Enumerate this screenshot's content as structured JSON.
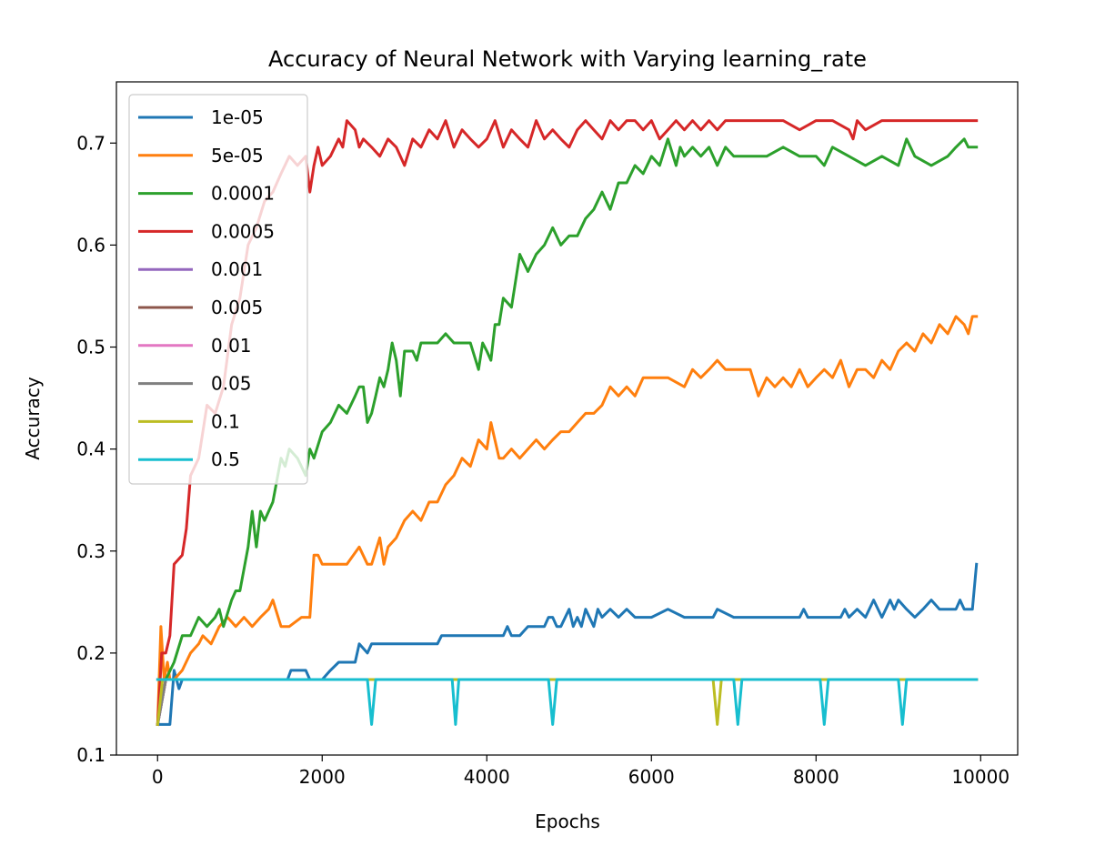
{
  "chart_data": {
    "type": "line",
    "title": "Accuracy of Neural Network with Varying learning_rate",
    "xlabel": "Epochs",
    "ylabel": "Accuracy",
    "xlim": [
      -500,
      10450
    ],
    "ylim": [
      0.1,
      0.76
    ],
    "xticks": [
      0,
      2000,
      4000,
      6000,
      8000,
      10000
    ],
    "yticks": [
      0.1,
      0.2,
      0.3,
      0.4,
      0.5,
      0.6,
      0.7
    ],
    "ytick_labels": [
      "0.1",
      "0.2",
      "0.3",
      "0.4",
      "0.5",
      "0.6",
      "0.7"
    ],
    "grid": false,
    "legend_position": "upper-left",
    "series": [
      {
        "name": "1e-05",
        "color": "#1f77b4",
        "x": [
          0,
          40,
          100,
          150,
          200,
          260,
          300,
          400,
          500,
          600,
          800,
          1000,
          1200,
          1400,
          1500,
          1580,
          1620,
          1800,
          1850,
          2000,
          2100,
          2200,
          2400,
          2450,
          2550,
          2600,
          3000,
          3400,
          3450,
          3800,
          4200,
          4250,
          4300,
          4400,
          4500,
          4600,
          4700,
          4750,
          4800,
          4850,
          4900,
          5000,
          5050,
          5100,
          5150,
          5200,
          5300,
          5350,
          5400,
          5500,
          5600,
          5700,
          5800,
          6000,
          6200,
          6400,
          6600,
          6750,
          6800,
          7000,
          7800,
          7850,
          7900,
          8300,
          8350,
          8400,
          8500,
          8600,
          8700,
          8800,
          8900,
          8950,
          9000,
          9100,
          9200,
          9300,
          9400,
          9500,
          9600,
          9700,
          9750,
          9800,
          9850,
          9900,
          9950
        ],
        "y": [
          0.13,
          0.13,
          0.13,
          0.13,
          0.183,
          0.165,
          0.174,
          0.174,
          0.174,
          0.174,
          0.174,
          0.174,
          0.174,
          0.174,
          0.174,
          0.174,
          0.183,
          0.183,
          0.174,
          0.174,
          0.183,
          0.191,
          0.191,
          0.209,
          0.2,
          0.209,
          0.209,
          0.209,
          0.217,
          0.217,
          0.217,
          0.226,
          0.217,
          0.217,
          0.226,
          0.226,
          0.226,
          0.235,
          0.235,
          0.226,
          0.226,
          0.243,
          0.226,
          0.235,
          0.226,
          0.243,
          0.226,
          0.243,
          0.235,
          0.243,
          0.235,
          0.243,
          0.235,
          0.235,
          0.243,
          0.235,
          0.235,
          0.235,
          0.243,
          0.235,
          0.235,
          0.243,
          0.235,
          0.235,
          0.243,
          0.235,
          0.243,
          0.235,
          0.252,
          0.235,
          0.252,
          0.243,
          0.252,
          0.243,
          0.235,
          0.243,
          0.252,
          0.243,
          0.243,
          0.243,
          0.252,
          0.243,
          0.243,
          0.243,
          0.287
        ]
      },
      {
        "name": "5e-05",
        "color": "#ff7f0e",
        "x": [
          0,
          40,
          80,
          120,
          150,
          200,
          300,
          400,
          500,
          550,
          650,
          750,
          850,
          950,
          1050,
          1150,
          1250,
          1350,
          1400,
          1500,
          1600,
          1750,
          1850,
          1900,
          1950,
          2000,
          2100,
          2300,
          2450,
          2550,
          2600,
          2700,
          2750,
          2800,
          2900,
          3000,
          3100,
          3200,
          3300,
          3400,
          3500,
          3600,
          3700,
          3800,
          3900,
          4000,
          4050,
          4150,
          4200,
          4300,
          4400,
          4500,
          4600,
          4700,
          4800,
          4900,
          5000,
          5100,
          5200,
          5300,
          5400,
          5500,
          5600,
          5700,
          5800,
          5900,
          6000,
          6200,
          6400,
          6500,
          6600,
          6700,
          6800,
          6900,
          7000,
          7100,
          7200,
          7300,
          7400,
          7500,
          7600,
          7700,
          7800,
          7900,
          8000,
          8100,
          8200,
          8300,
          8400,
          8500,
          8600,
          8700,
          8800,
          8900,
          9000,
          9100,
          9200,
          9300,
          9400,
          9500,
          9600,
          9700,
          9800,
          9850,
          9900,
          9950
        ],
        "y": [
          0.13,
          0.226,
          0.174,
          0.191,
          0.174,
          0.174,
          0.183,
          0.2,
          0.209,
          0.217,
          0.209,
          0.226,
          0.235,
          0.226,
          0.235,
          0.226,
          0.235,
          0.243,
          0.252,
          0.226,
          0.226,
          0.235,
          0.235,
          0.296,
          0.296,
          0.287,
          0.287,
          0.287,
          0.304,
          0.287,
          0.287,
          0.313,
          0.287,
          0.304,
          0.313,
          0.33,
          0.339,
          0.33,
          0.348,
          0.348,
          0.365,
          0.374,
          0.391,
          0.383,
          0.409,
          0.4,
          0.426,
          0.391,
          0.391,
          0.4,
          0.391,
          0.4,
          0.409,
          0.4,
          0.409,
          0.417,
          0.417,
          0.426,
          0.435,
          0.435,
          0.443,
          0.461,
          0.452,
          0.461,
          0.452,
          0.47,
          0.47,
          0.47,
          0.461,
          0.478,
          0.47,
          0.478,
          0.487,
          0.478,
          0.478,
          0.478,
          0.478,
          0.452,
          0.47,
          0.461,
          0.47,
          0.461,
          0.478,
          0.461,
          0.47,
          0.478,
          0.47,
          0.487,
          0.461,
          0.478,
          0.478,
          0.47,
          0.487,
          0.478,
          0.496,
          0.504,
          0.496,
          0.513,
          0.504,
          0.522,
          0.513,
          0.53,
          0.522,
          0.513,
          0.53,
          0.53
        ]
      },
      {
        "name": "0.0001",
        "color": "#2ca02c",
        "x": [
          0,
          100,
          200,
          300,
          400,
          450,
          500,
          600,
          700,
          750,
          800,
          900,
          950,
          1000,
          1100,
          1150,
          1200,
          1250,
          1300,
          1400,
          1500,
          1550,
          1600,
          1700,
          1800,
          1850,
          1900,
          2000,
          2100,
          2200,
          2300,
          2400,
          2450,
          2500,
          2550,
          2600,
          2650,
          2700,
          2750,
          2800,
          2850,
          2900,
          2950,
          3000,
          3100,
          3150,
          3200,
          3300,
          3400,
          3500,
          3600,
          3700,
          3800,
          3900,
          3950,
          4000,
          4050,
          4100,
          4150,
          4200,
          4300,
          4400,
          4500,
          4600,
          4700,
          4800,
          4900,
          5000,
          5100,
          5200,
          5300,
          5400,
          5500,
          5600,
          5700,
          5800,
          5900,
          6000,
          6100,
          6200,
          6300,
          6350,
          6400,
          6500,
          6600,
          6700,
          6800,
          6900,
          7000,
          7200,
          7400,
          7600,
          7800,
          8000,
          8100,
          8200,
          8400,
          8600,
          8800,
          9000,
          9100,
          9200,
          9400,
          9600,
          9700,
          9800,
          9850,
          9900,
          9950
        ],
        "y": [
          0.13,
          0.174,
          0.191,
          0.217,
          0.217,
          0.226,
          0.235,
          0.226,
          0.235,
          0.243,
          0.226,
          0.252,
          0.261,
          0.261,
          0.304,
          0.339,
          0.304,
          0.339,
          0.33,
          0.348,
          0.391,
          0.383,
          0.4,
          0.391,
          0.374,
          0.4,
          0.391,
          0.417,
          0.426,
          0.443,
          0.435,
          0.452,
          0.461,
          0.461,
          0.426,
          0.435,
          0.452,
          0.47,
          0.461,
          0.478,
          0.504,
          0.487,
          0.452,
          0.496,
          0.496,
          0.487,
          0.504,
          0.504,
          0.504,
          0.513,
          0.504,
          0.504,
          0.504,
          0.478,
          0.504,
          0.496,
          0.487,
          0.522,
          0.522,
          0.548,
          0.539,
          0.591,
          0.574,
          0.591,
          0.6,
          0.617,
          0.6,
          0.609,
          0.609,
          0.626,
          0.635,
          0.652,
          0.635,
          0.661,
          0.661,
          0.678,
          0.67,
          0.687,
          0.678,
          0.704,
          0.678,
          0.696,
          0.687,
          0.696,
          0.687,
          0.696,
          0.678,
          0.696,
          0.687,
          0.687,
          0.687,
          0.696,
          0.687,
          0.687,
          0.678,
          0.696,
          0.687,
          0.678,
          0.687,
          0.678,
          0.704,
          0.687,
          0.678,
          0.687,
          0.696,
          0.704,
          0.696,
          0.696,
          0.696
        ]
      },
      {
        "name": "0.0005",
        "color": "#d62728",
        "x": [
          0,
          50,
          100,
          150,
          200,
          300,
          350,
          400,
          500,
          600,
          700,
          800,
          900,
          1000,
          1100,
          1200,
          1300,
          1400,
          1500,
          1600,
          1700,
          1800,
          1850,
          1900,
          1950,
          2000,
          2100,
          2200,
          2250,
          2300,
          2400,
          2450,
          2500,
          2600,
          2700,
          2800,
          2900,
          3000,
          3100,
          3200,
          3300,
          3400,
          3500,
          3600,
          3700,
          3800,
          3900,
          4000,
          4100,
          4200,
          4300,
          4400,
          4500,
          4600,
          4700,
          4800,
          4900,
          5000,
          5100,
          5200,
          5300,
          5400,
          5500,
          5600,
          5700,
          5800,
          5900,
          6000,
          6100,
          6200,
          6300,
          6400,
          6500,
          6600,
          6700,
          6800,
          6900,
          7000,
          7200,
          7400,
          7600,
          7800,
          8000,
          8200,
          8400,
          8450,
          8500,
          8600,
          8800,
          9000,
          9200,
          9400,
          9600,
          9800,
          9900,
          9950
        ],
        "y": [
          0.13,
          0.2,
          0.2,
          0.217,
          0.287,
          0.296,
          0.322,
          0.374,
          0.391,
          0.443,
          0.435,
          0.461,
          0.522,
          0.548,
          0.6,
          0.617,
          0.643,
          0.652,
          0.67,
          0.687,
          0.678,
          0.687,
          0.652,
          0.678,
          0.696,
          0.678,
          0.687,
          0.704,
          0.696,
          0.722,
          0.713,
          0.696,
          0.704,
          0.696,
          0.687,
          0.704,
          0.696,
          0.678,
          0.704,
          0.696,
          0.713,
          0.704,
          0.722,
          0.696,
          0.713,
          0.704,
          0.696,
          0.704,
          0.722,
          0.696,
          0.713,
          0.704,
          0.696,
          0.722,
          0.704,
          0.713,
          0.704,
          0.696,
          0.713,
          0.722,
          0.713,
          0.704,
          0.722,
          0.713,
          0.722,
          0.722,
          0.713,
          0.722,
          0.704,
          0.713,
          0.722,
          0.713,
          0.722,
          0.713,
          0.722,
          0.713,
          0.722,
          0.722,
          0.722,
          0.722,
          0.722,
          0.713,
          0.722,
          0.722,
          0.713,
          0.704,
          0.722,
          0.713,
          0.722,
          0.722,
          0.722,
          0.722,
          0.722,
          0.722,
          0.722,
          0.722
        ]
      },
      {
        "name": "0.001",
        "color": "#9467bd",
        "x": [
          0,
          100,
          9950
        ],
        "y": [
          0.13,
          0.174,
          0.174
        ]
      },
      {
        "name": "0.005",
        "color": "#8c564b",
        "x": [
          0,
          100,
          9950
        ],
        "y": [
          0.13,
          0.174,
          0.174
        ]
      },
      {
        "name": "0.01",
        "color": "#e377c2",
        "x": [
          0,
          100,
          9950
        ],
        "y": [
          0.13,
          0.174,
          0.174
        ]
      },
      {
        "name": "0.05",
        "color": "#7f7f7f",
        "x": [
          0,
          100,
          9950
        ],
        "y": [
          0.13,
          0.174,
          0.174
        ]
      },
      {
        "name": "0.1",
        "color": "#bcbd22",
        "x": [
          0,
          60,
          100,
          6750,
          6800,
          6850,
          9950
        ],
        "y": [
          0.13,
          0.174,
          0.174,
          0.174,
          0.13,
          0.174,
          0.174
        ]
      },
      {
        "name": "0.5",
        "color": "#17becf",
        "x": [
          0,
          2550,
          2600,
          2650,
          3580,
          3620,
          3660,
          4750,
          4800,
          4850,
          7000,
          7050,
          7100,
          8050,
          8100,
          8150,
          9000,
          9050,
          9100,
          9950
        ],
        "y": [
          0.174,
          0.174,
          0.13,
          0.174,
          0.174,
          0.13,
          0.174,
          0.174,
          0.13,
          0.174,
          0.174,
          0.13,
          0.174,
          0.174,
          0.13,
          0.174,
          0.174,
          0.13,
          0.174,
          0.174
        ]
      }
    ]
  }
}
